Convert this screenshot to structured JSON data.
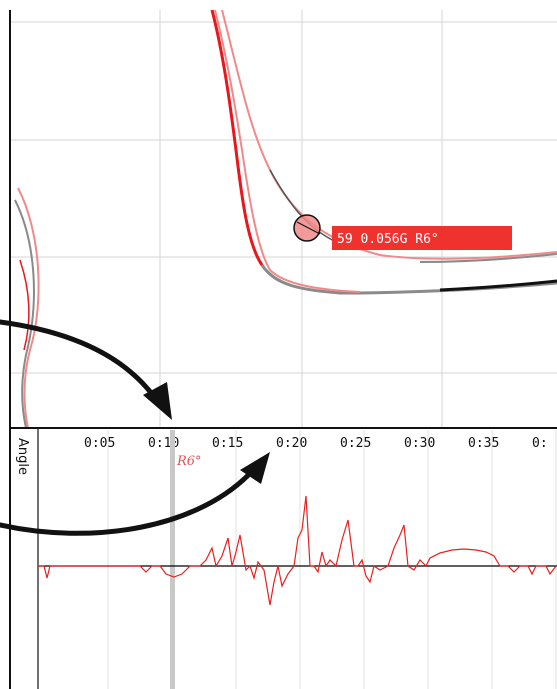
{
  "map_view": {
    "tooltip": {
      "lap": "59",
      "g_force": "0.056G",
      "angle": "R6°",
      "text": "59 0.056G R6°"
    },
    "colors": {
      "trace_red": "#e8171c",
      "trace_pink": "#f08a8a",
      "trace_gray": "#8a8a8a",
      "trace_black": "#111111",
      "tooltip_bg": "#f0322e",
      "grid": "#d4d4d4"
    }
  },
  "graph": {
    "channel_label": "Angle",
    "cursor_label": "R6°",
    "time_ticks": [
      "0:05",
      "0:10",
      "0:15",
      "0:20",
      "0:25",
      "0:30",
      "0:35",
      "0:"
    ],
    "colors": {
      "angle_line": "#e82020",
      "cursor": "#c8c8c8",
      "cursor_label": "#e85050",
      "zero_line": "#000000"
    }
  },
  "annotations": {
    "arrow_count": 2,
    "arrow_color": "#111111"
  }
}
